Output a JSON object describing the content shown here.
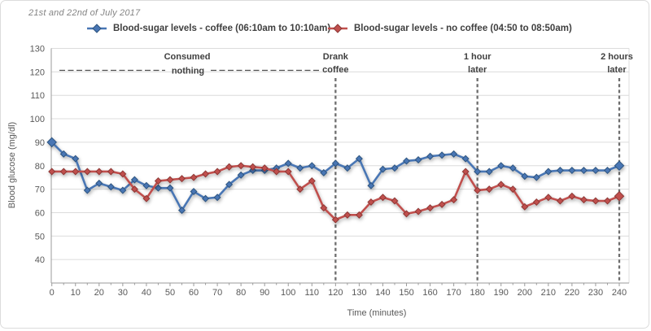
{
  "chart_data": {
    "type": "line",
    "title": "21st and 22nd of July 2017",
    "xlabel": "Time (minutes)",
    "ylabel": "Blood glucose (mg/dl)",
    "grid": true,
    "legend_position": "top",
    "x_axis": {
      "title": "Time (minutes)",
      "ticks": [
        0,
        10,
        20,
        30,
        40,
        50,
        60,
        70,
        80,
        90,
        100,
        110,
        120,
        130,
        140,
        150,
        160,
        170,
        180,
        190,
        200,
        210,
        220,
        230,
        240
      ],
      "minor_step": 5,
      "min": 0,
      "max": 240
    },
    "y_axis": {
      "title": "Blood glucose (mg/dl)",
      "ticks": [
        40,
        50,
        60,
        70,
        80,
        90,
        100,
        110,
        120,
        130
      ],
      "min": 30,
      "max": 130
    },
    "x": [
      0,
      5,
      10,
      15,
      20,
      25,
      30,
      35,
      40,
      45,
      50,
      55,
      60,
      65,
      70,
      75,
      80,
      85,
      90,
      95,
      100,
      105,
      110,
      115,
      120,
      125,
      130,
      135,
      140,
      145,
      150,
      155,
      160,
      165,
      170,
      175,
      180,
      185,
      190,
      195,
      200,
      205,
      210,
      215,
      220,
      225,
      230,
      235,
      240
    ],
    "series": [
      {
        "name": "Blood-sugar levels - coffee (06:10am to 10:10am)",
        "color": "#4876b4",
        "edge_color": "#2f5580",
        "values": [
          90,
          85,
          83,
          69.5,
          72.5,
          71,
          69.5,
          74,
          71.5,
          70.5,
          70.5,
          61,
          69,
          66,
          66.5,
          72,
          76,
          78,
          78,
          79,
          81,
          79,
          80,
          77,
          81,
          79,
          83,
          71.5,
          78.5,
          79,
          82,
          82.5,
          84,
          84.5,
          85,
          83,
          77.5,
          77.5,
          80,
          79,
          75.5,
          75,
          77.5,
          78,
          78,
          78,
          78,
          78,
          80
        ]
      },
      {
        "name": "Blood-sugar levels - no coffee (04:50 to 08:50am)",
        "color": "#c0504d",
        "edge_color": "#8e3836",
        "values": [
          77.5,
          77.5,
          77.5,
          77.5,
          77.5,
          77.5,
          76.5,
          70,
          66,
          73.5,
          74,
          74.5,
          75,
          76.5,
          77.5,
          79.5,
          80,
          79.5,
          79,
          77.5,
          77.5,
          70,
          73.5,
          62,
          57,
          59,
          59,
          64.5,
          66.5,
          65,
          59.5,
          60.5,
          62,
          63.5,
          65.5,
          77.5,
          69.5,
          70,
          72,
          70,
          62.5,
          64.5,
          66.5,
          65,
          67,
          65.5,
          65,
          65,
          67
        ]
      }
    ],
    "annotations": {
      "consumed": {
        "line1": "Consumed",
        "line2": "nothing"
      },
      "events": [
        {
          "x": 120,
          "line1": "Drank",
          "line2": "coffee"
        },
        {
          "x": 180,
          "line1": "1 hour",
          "line2": "later"
        },
        {
          "x": 240,
          "line1": "2 hours",
          "line2": "later"
        }
      ]
    },
    "colors": {
      "gridline": "#dcdcdc",
      "axis": "#9b9b9b",
      "event_dash": "#6e6e6e",
      "anno_dash": "#4d4d4d",
      "tick_text": "#595959",
      "title_text": "#848484"
    }
  }
}
